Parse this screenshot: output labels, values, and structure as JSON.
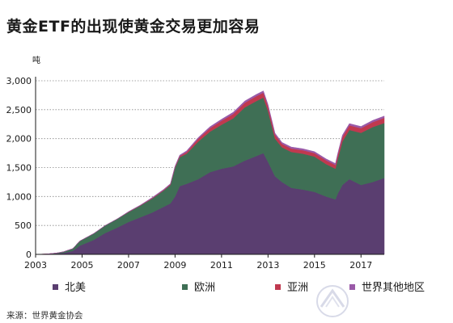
{
  "title": "黄金ETF的出现使黄金交易更加容易",
  "source": "来源：世界黄金协会",
  "chart_data": {
    "type": "area",
    "stacked": true,
    "ylabel": "吨",
    "xlabel": "",
    "xlim": [
      2003,
      2018
    ],
    "ylim": [
      0,
      3000
    ],
    "y_ticks": [
      0,
      500,
      1000,
      1500,
      2000,
      2500,
      3000
    ],
    "y_tick_labels": [
      "0",
      "500",
      "1,000",
      "1,500",
      "2,000",
      "2,500",
      "3,000"
    ],
    "x_ticks": [
      2003,
      2005,
      2007,
      2009,
      2011,
      2013,
      2015,
      2017
    ],
    "x_tick_labels": [
      "2003",
      "2005",
      "2007",
      "2009",
      "2011",
      "2013",
      "2015",
      "2017"
    ],
    "grid": "horizontal dotted",
    "legend_position": "bottom",
    "x": [
      2003.0,
      2003.5,
      2003.9,
      2004.2,
      2004.6,
      2004.9,
      2005.5,
      2006.0,
      2006.5,
      2007.0,
      2007.5,
      2008.0,
      2008.5,
      2008.8,
      2009.0,
      2009.2,
      2009.5,
      2010.0,
      2010.5,
      2011.0,
      2011.5,
      2012.0,
      2012.5,
      2012.8,
      2013.0,
      2013.3,
      2013.6,
      2014.0,
      2014.5,
      2015.0,
      2015.5,
      2015.9,
      2016.0,
      2016.2,
      2016.5,
      2017.0,
      2017.5,
      2018.0
    ],
    "series": [
      {
        "name": "北美",
        "color": "#5a3e70",
        "values": [
          0,
          5,
          15,
          25,
          60,
          150,
          250,
          370,
          460,
          560,
          640,
          720,
          820,
          880,
          1000,
          1180,
          1220,
          1300,
          1420,
          1480,
          1520,
          1620,
          1700,
          1750,
          1600,
          1350,
          1250,
          1150,
          1120,
          1080,
          1000,
          950,
          1050,
          1200,
          1300,
          1200,
          1250,
          1320
        ]
      },
      {
        "name": "欧洲",
        "color": "#3f6f55",
        "values": [
          0,
          2,
          8,
          20,
          40,
          80,
          110,
          130,
          150,
          170,
          200,
          240,
          280,
          320,
          500,
          500,
          520,
          650,
          700,
          760,
          830,
          920,
          950,
          960,
          880,
          650,
          600,
          620,
          620,
          610,
          560,
          530,
          600,
          750,
          850,
          900,
          950,
          950
        ]
      },
      {
        "name": "亚洲",
        "color": "#c0394f",
        "values": [
          0,
          0,
          0,
          0,
          0,
          0,
          0,
          0,
          0,
          5,
          5,
          8,
          10,
          12,
          15,
          20,
          30,
          50,
          60,
          70,
          75,
          80,
          85,
          85,
          80,
          70,
          60,
          60,
          60,
          60,
          65,
          65,
          70,
          80,
          80,
          80,
          85,
          90
        ]
      },
      {
        "name": "世界其他地区",
        "color": "#9a5aa8",
        "values": [
          0,
          0,
          0,
          0,
          0,
          0,
          0,
          0,
          0,
          5,
          5,
          10,
          10,
          10,
          10,
          15,
          20,
          20,
          25,
          25,
          30,
          30,
          30,
          30,
          30,
          25,
          25,
          25,
          25,
          25,
          25,
          25,
          25,
          30,
          30,
          30,
          30,
          30
        ]
      }
    ]
  }
}
